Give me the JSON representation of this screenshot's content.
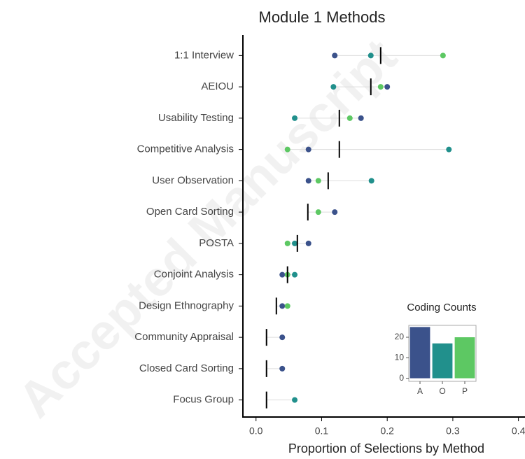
{
  "watermark": "Accepted Manuscript",
  "chart_data": [
    {
      "type": "dot",
      "title": "Module 1 Methods",
      "xlabel": "Proportion of Selections by Method",
      "categories": [
        "1:1 Interview",
        "AEIOU",
        "Usability Testing",
        "Competitive Analysis",
        "User Observation",
        "Open Card Sorting",
        "POSTA",
        "Conjoint Analysis",
        "Design Ethnography",
        "Community Appraisal",
        "Closed Card Sorting",
        "Focus Group"
      ],
      "series": [
        {
          "color": "#3b528b",
          "marker": "dot",
          "values": [
            0.12,
            0.2,
            0.16,
            0.08,
            0.08,
            0.12,
            0.08,
            0.04,
            0.04,
            0.04,
            0.04,
            null
          ]
        },
        {
          "color": "#21908c",
          "marker": "dot",
          "values": [
            0.175,
            0.118,
            0.059,
            0.294,
            0.176,
            null,
            0.059,
            0.059,
            null,
            null,
            null,
            0.059
          ]
        },
        {
          "color": "#5dc863",
          "marker": "dot",
          "values": [
            0.285,
            0.19,
            0.143,
            0.048,
            0.095,
            0.095,
            0.048,
            0.048,
            0.048,
            null,
            null,
            null
          ]
        },
        {
          "color": "#000000",
          "marker": "tick",
          "values": [
            0.19,
            0.175,
            0.127,
            0.127,
            0.11,
            0.079,
            0.063,
            0.048,
            0.031,
            0.016,
            0.016,
            0.016
          ]
        }
      ],
      "xlim": [
        -0.02,
        0.41
      ],
      "xticks": [
        {
          "value": 0,
          "label": "0.0"
        },
        {
          "value": 0.1,
          "label": "0.1"
        },
        {
          "value": 0.2,
          "label": "0.2"
        },
        {
          "value": 0.3,
          "label": "0.3"
        },
        {
          "value": 0.4,
          "label": "0.4"
        }
      ]
    },
    {
      "type": "bar",
      "title": "Coding Counts",
      "categories": [
        "A",
        "O",
        "P"
      ],
      "values": [
        25,
        17,
        20
      ],
      "colors": [
        "#3b528b",
        "#21908c",
        "#5dc863"
      ],
      "ylim": [
        -1.5,
        25.8
      ],
      "yticks": [
        0,
        10,
        20
      ]
    }
  ]
}
